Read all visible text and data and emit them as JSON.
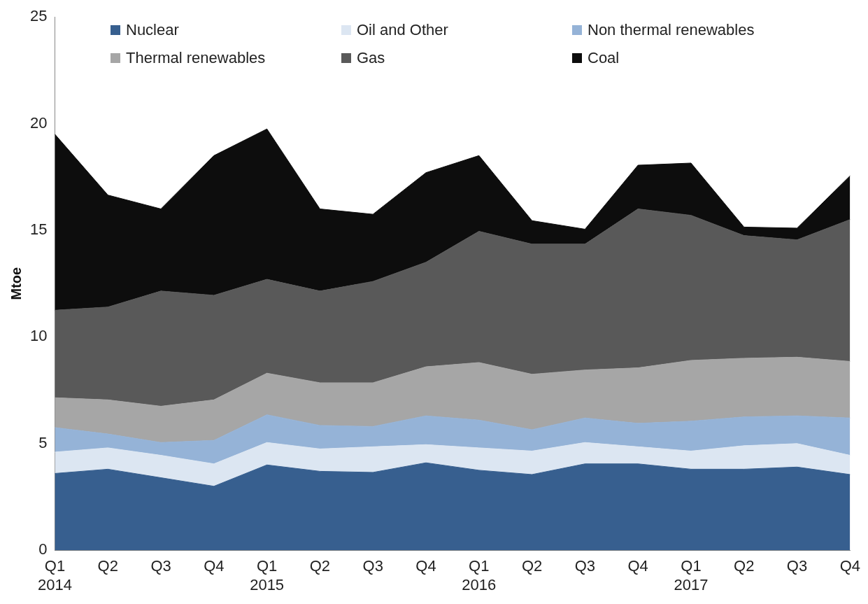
{
  "chart_data": {
    "type": "area",
    "stacked": true,
    "ylabel": "Mtoe",
    "ylim": [
      0,
      25
    ],
    "yticks": [
      0,
      5,
      10,
      15,
      20,
      25
    ],
    "grid": false,
    "legend": "top",
    "categories": [
      "Q1 2014",
      "Q2",
      "Q3",
      "Q4",
      "Q1 2015",
      "Q2",
      "Q3",
      "Q4",
      "Q1 2016",
      "Q2",
      "Q3",
      "Q4",
      "Q1 2017",
      "Q2",
      "Q3",
      "Q4"
    ],
    "series": [
      {
        "name": "Nuclear",
        "color": "#375f8f",
        "values": [
          3.6,
          3.8,
          3.4,
          3.0,
          4.0,
          3.7,
          3.65,
          4.1,
          3.75,
          3.55,
          4.05,
          4.05,
          3.8,
          3.8,
          3.9,
          3.55
        ]
      },
      {
        "name": "Oil and Other",
        "color": "#dce6f2",
        "values": [
          1.0,
          1.0,
          1.05,
          1.05,
          1.05,
          1.05,
          1.2,
          0.85,
          1.05,
          1.1,
          1.0,
          0.8,
          0.85,
          1.1,
          1.1,
          0.9
        ]
      },
      {
        "name": "Non thermal renewables",
        "color": "#95b3d7",
        "values": [
          1.15,
          0.65,
          0.6,
          1.1,
          1.3,
          1.1,
          0.95,
          1.35,
          1.3,
          1.0,
          1.15,
          1.1,
          1.4,
          1.35,
          1.3,
          1.75
        ]
      },
      {
        "name": "Thermal renewables",
        "color": "#a6a6a6",
        "values": [
          1.4,
          1.6,
          1.7,
          1.9,
          1.95,
          2.0,
          2.05,
          2.3,
          2.7,
          2.6,
          2.25,
          2.6,
          2.85,
          2.75,
          2.75,
          2.65
        ]
      },
      {
        "name": "Gas",
        "color": "#595959",
        "values": [
          4.1,
          4.35,
          5.4,
          4.9,
          4.4,
          4.3,
          4.75,
          4.9,
          6.15,
          6.1,
          5.9,
          7.45,
          6.8,
          5.75,
          5.5,
          6.65
        ]
      },
      {
        "name": "Coal",
        "color": "#0d0d0d",
        "values": [
          8.25,
          5.25,
          3.85,
          6.55,
          7.05,
          3.85,
          3.15,
          4.2,
          3.55,
          1.1,
          0.7,
          2.05,
          2.45,
          0.4,
          0.55,
          2.05
        ]
      }
    ]
  }
}
